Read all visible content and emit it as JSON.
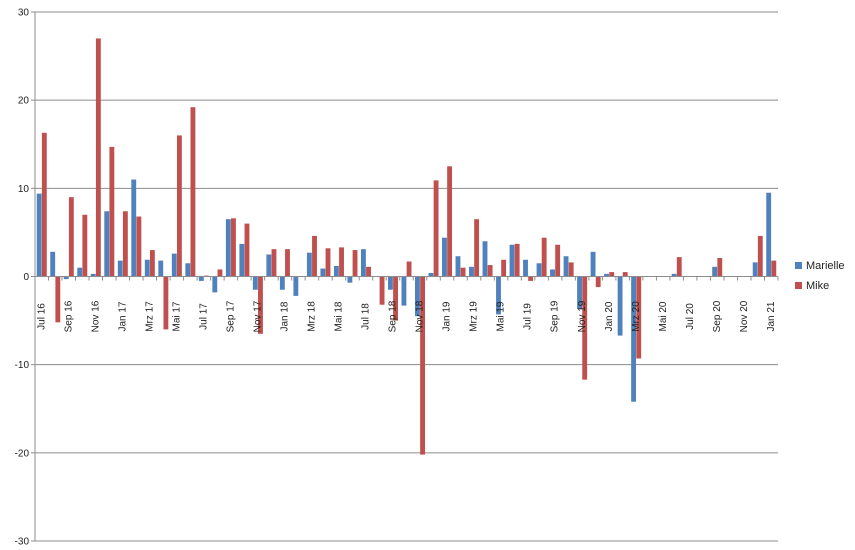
{
  "chart_data": {
    "type": "bar",
    "ylim": [
      -30,
      30
    ],
    "yticks": [
      -30,
      -20,
      -10,
      0,
      10,
      20,
      30
    ],
    "grid": "horizontal",
    "legend_position": "right",
    "colors": {
      "Marielle": "#4f81bd",
      "Mike": "#c0504d"
    },
    "categories": [
      "Jul 16",
      "Aug 16",
      "Sep 16",
      "Okt 16",
      "Nov 16",
      "Dez 16",
      "Jan 17",
      "Feb 17",
      "Mrz 17",
      "Apr 17",
      "Mai 17",
      "Jun 17",
      "Jul 17",
      "Aug 17",
      "Sep 17",
      "Okt 17",
      "Nov 17",
      "Dez 17",
      "Jan 18",
      "Feb 18",
      "Mrz 18",
      "Apr 18",
      "Mai 18",
      "Jun 18",
      "Jul 18",
      "Aug 18",
      "Sep 18",
      "Okt 18",
      "Nov 18",
      "Dez 18",
      "Jan 19",
      "Feb 19",
      "Mrz 19",
      "Apr 19",
      "Mai 19",
      "Jun 19",
      "Jul 19",
      "Aug 19",
      "Sep 19",
      "Okt 19",
      "Nov 19",
      "Dez 19",
      "Jan 20",
      "Feb 20",
      "Mrz 20",
      "Apr 20",
      "Mai 20",
      "Jun 20",
      "Jul 20",
      "Aug 20",
      "Sep 20",
      "Okt 20",
      "Nov 20",
      "Dez 20",
      "Jan 21"
    ],
    "xtick_labels": [
      "Jul 16",
      "Sep 16",
      "Nov 16",
      "Jan 17",
      "Mrz 17",
      "Mai 17",
      "Jul 17",
      "Sep 17",
      "Nov 17",
      "Jan 18",
      "Mrz 18",
      "Mai 18",
      "Jul 18",
      "Sep 18",
      "Nov 18",
      "Jan 19",
      "Mrz 19",
      "Mai 19",
      "Jul 19",
      "Sep 19",
      "Nov 19",
      "Jan 20",
      "Mrz 20",
      "Mai 20",
      "Jul 20",
      "Sep 20",
      "Nov 20",
      "Jan 21"
    ],
    "series": [
      {
        "name": "Marielle",
        "values": [
          9.4,
          2.8,
          -0.3,
          1.0,
          0.3,
          7.4,
          1.8,
          11.0,
          1.9,
          1.8,
          2.6,
          1.5,
          -0.5,
          -1.8,
          6.5,
          3.7,
          -1.5,
          2.5,
          -1.5,
          -2.2,
          2.7,
          0.9,
          1.2,
          -0.7,
          3.1,
          0,
          -1.5,
          -3.3,
          -4.5,
          0.4,
          4.4,
          2.3,
          1.1,
          4.0,
          -4.3,
          3.6,
          1.9,
          1.5,
          0.8,
          2.3,
          -3.7,
          2.8,
          0.3,
          -6.7,
          -14.2,
          0,
          0,
          0.3,
          0,
          0,
          1.1,
          0,
          0,
          1.6,
          9.5
        ]
      },
      {
        "name": "Mike",
        "values": [
          16.3,
          -5.2,
          9.0,
          7.0,
          27.0,
          14.7,
          7.4,
          6.8,
          3.0,
          -6.0,
          16.0,
          19.2,
          0.1,
          0.8,
          6.6,
          6.0,
          -6.5,
          3.1,
          3.1,
          0,
          4.6,
          3.2,
          3.3,
          3.0,
          1.1,
          -3.2,
          -5.0,
          1.7,
          -20.2,
          10.9,
          12.5,
          1.0,
          6.5,
          1.3,
          1.9,
          3.7,
          -0.5,
          4.4,
          3.6,
          1.6,
          -11.7,
          -1.2,
          0.5,
          0.5,
          -9.3,
          0,
          0,
          2.2,
          0,
          0,
          2.1,
          0,
          0,
          4.6,
          1.8
        ]
      }
    ]
  }
}
